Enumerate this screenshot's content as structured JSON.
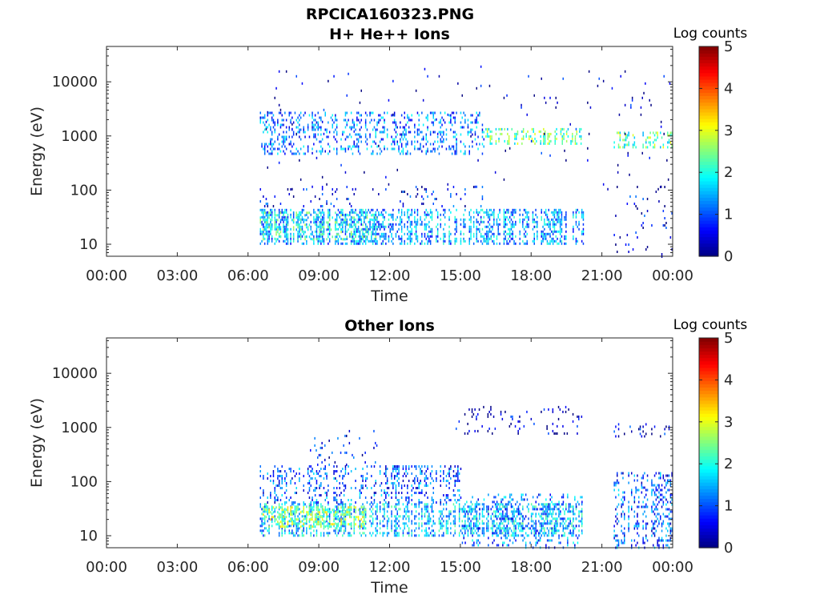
{
  "figure_title": "RPCICA160323.PNG",
  "chart_data": [
    {
      "type": "heatmap",
      "title": "H+ He++ Ions",
      "xlabel": "Time",
      "ylabel": "Energy (eV)",
      "x_ticks": [
        "00:00",
        "03:00",
        "06:00",
        "09:00",
        "12:00",
        "15:00",
        "18:00",
        "21:00",
        "00:00"
      ],
      "x_range_hours": [
        0,
        24
      ],
      "y_scale": "log",
      "y_ticks": [
        "10",
        "100",
        "1000",
        "10000"
      ],
      "y_range": [
        6,
        45000
      ],
      "colorbar": {
        "label": "Log counts",
        "ticks": [
          "0",
          "1",
          "2",
          "3",
          "4",
          "5"
        ],
        "range": [
          0,
          5
        ],
        "colormap": "jet"
      },
      "data_window_hours": [
        [
          6.5,
          20.2
        ],
        [
          21.5,
          24
        ]
      ],
      "bands": [
        {
          "hours": [
            6.5,
            20.2
          ],
          "energy": [
            10,
            45
          ],
          "level": 1.4,
          "density": 0.5
        },
        {
          "hours": [
            6.5,
            11.5
          ],
          "energy": [
            12,
            40
          ],
          "level": 2.0,
          "density": 0.35
        },
        {
          "hours": [
            6.5,
            16.0
          ],
          "energy": [
            50,
            120
          ],
          "level": 0.6,
          "density": 0.07
        },
        {
          "hours": [
            6.5,
            16.0
          ],
          "energy": [
            450,
            2800
          ],
          "level": 1.2,
          "density": 0.28
        },
        {
          "hours": [
            16.0,
            20.2
          ],
          "energy": [
            700,
            1400
          ],
          "level": 2.3,
          "density": 0.4
        },
        {
          "hours": [
            21.5,
            24.0
          ],
          "energy": [
            600,
            1200
          ],
          "level": 2.3,
          "density": 0.4
        },
        {
          "hours": [
            6.5,
            24.0
          ],
          "energy": [
            100,
            20000
          ],
          "level": 0.3,
          "density": 0.012
        },
        {
          "hours": [
            21.5,
            24.0
          ],
          "energy": [
            6,
            120
          ],
          "level": 0.4,
          "density": 0.04
        }
      ]
    },
    {
      "type": "heatmap",
      "title": "Other Ions",
      "xlabel": "Time",
      "ylabel": "Energy (eV)",
      "x_ticks": [
        "00:00",
        "03:00",
        "06:00",
        "09:00",
        "12:00",
        "15:00",
        "18:00",
        "21:00",
        "00:00"
      ],
      "x_range_hours": [
        0,
        24
      ],
      "y_scale": "log",
      "y_ticks": [
        "10",
        "100",
        "1000",
        "10000"
      ],
      "y_range": [
        6,
        45000
      ],
      "colorbar": {
        "label": "Log counts",
        "ticks": [
          "0",
          "1",
          "2",
          "3",
          "4",
          "5"
        ],
        "range": [
          0,
          5
        ],
        "colormap": "jet"
      },
      "data_window_hours": [
        [
          6.5,
          20.2
        ],
        [
          21.5,
          24
        ]
      ],
      "bands": [
        {
          "hours": [
            6.5,
            20.2
          ],
          "energy": [
            10,
            40
          ],
          "level": 1.6,
          "density": 0.5
        },
        {
          "hours": [
            6.5,
            11.0
          ],
          "energy": [
            15,
            35
          ],
          "level": 2.6,
          "density": 0.45
        },
        {
          "hours": [
            6.5,
            15.0
          ],
          "energy": [
            40,
            200
          ],
          "level": 1.0,
          "density": 0.3
        },
        {
          "hours": [
            8.5,
            11.5
          ],
          "energy": [
            200,
            900
          ],
          "level": 0.6,
          "density": 0.08
        },
        {
          "hours": [
            14.8,
            20.2
          ],
          "energy": [
            800,
            2500
          ],
          "level": 0.3,
          "density": 0.1
        },
        {
          "hours": [
            15.0,
            20.2
          ],
          "energy": [
            6,
            60
          ],
          "level": 1.2,
          "density": 0.2
        },
        {
          "hours": [
            21.5,
            24.0
          ],
          "energy": [
            6,
            150
          ],
          "level": 1.0,
          "density": 0.3
        },
        {
          "hours": [
            21.5,
            24.0
          ],
          "energy": [
            700,
            1200
          ],
          "level": 0.4,
          "density": 0.15
        }
      ]
    }
  ]
}
